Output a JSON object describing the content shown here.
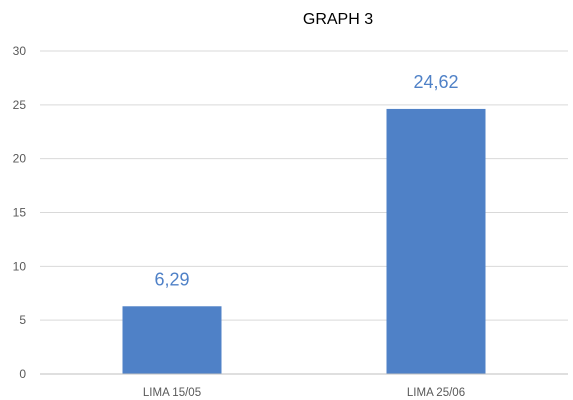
{
  "chart_data": {
    "type": "bar",
    "title": "GRAPH 3",
    "categories": [
      "LIMA 15/05",
      "LIMA 25/06"
    ],
    "series": [
      {
        "values": [
          6.29,
          24.62
        ],
        "data_labels": [
          "6,29",
          "24,62"
        ]
      }
    ],
    "ylim": [
      0,
      30
    ],
    "yticks": [
      0,
      5,
      10,
      15,
      20,
      25,
      30
    ],
    "xlabel": "",
    "ylabel": "",
    "grid": true,
    "legend": "none",
    "colors": {
      "bar": "#4f81c7",
      "data_label": "#4f81c7",
      "grid": "#d9d9d9",
      "axis": "#bfbfbf"
    }
  }
}
